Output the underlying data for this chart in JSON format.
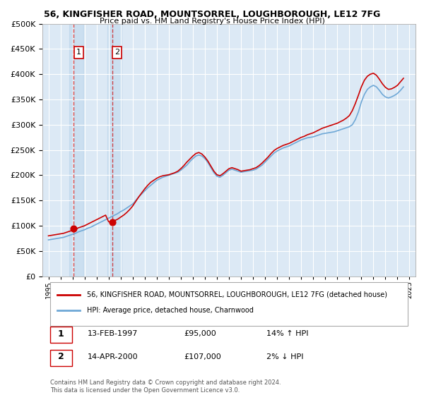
{
  "title1": "56, KINGFISHER ROAD, MOUNTSORREL, LOUGHBOROUGH, LE12 7FG",
  "title2": "Price paid vs. HM Land Registry's House Price Index (HPI)",
  "ylabel_ticks": [
    "£0",
    "£50K",
    "£100K",
    "£150K",
    "£200K",
    "£250K",
    "£300K",
    "£350K",
    "£400K",
    "£450K",
    "£500K"
  ],
  "ytick_values": [
    0,
    50000,
    100000,
    150000,
    200000,
    250000,
    300000,
    350000,
    400000,
    450000,
    500000
  ],
  "xlim": [
    1994.5,
    2025.5
  ],
  "ylim": [
    0,
    500000
  ],
  "hpi_color": "#6fa8d6",
  "price_color": "#cc0000",
  "background_color": "#dce9f5",
  "grid_color": "#ffffff",
  "legend_label_red": "56, KINGFISHER ROAD, MOUNTSORREL, LOUGHBOROUGH, LE12 7FG (detached house)",
  "legend_label_blue": "HPI: Average price, detached house, Charnwood",
  "transaction1_label": "1",
  "transaction1_date": "13-FEB-1997",
  "transaction1_price": "£95,000",
  "transaction1_hpi": "14% ↑ HPI",
  "transaction1_year": 1997.11,
  "transaction1_value": 95000,
  "transaction2_label": "2",
  "transaction2_date": "14-APR-2000",
  "transaction2_price": "£107,000",
  "transaction2_hpi": "2% ↓ HPI",
  "transaction2_year": 2000.29,
  "transaction2_value": 107000,
  "footnote": "Contains HM Land Registry data © Crown copyright and database right 2024.\nThis data is licensed under the Open Government Licence v3.0.",
  "hpi_x": [
    1995,
    1995.25,
    1995.5,
    1995.75,
    1996,
    1996.25,
    1996.5,
    1996.75,
    1997,
    1997.25,
    1997.5,
    1997.75,
    1998,
    1998.25,
    1998.5,
    1998.75,
    1999,
    1999.25,
    1999.5,
    1999.75,
    2000,
    2000.25,
    2000.5,
    2000.75,
    2001,
    2001.25,
    2001.5,
    2001.75,
    2002,
    2002.25,
    2002.5,
    2002.75,
    2003,
    2003.25,
    2003.5,
    2003.75,
    2004,
    2004.25,
    2004.5,
    2004.75,
    2005,
    2005.25,
    2005.5,
    2005.75,
    2006,
    2006.25,
    2006.5,
    2006.75,
    2007,
    2007.25,
    2007.5,
    2007.75,
    2008,
    2008.25,
    2008.5,
    2008.75,
    2009,
    2009.25,
    2009.5,
    2009.75,
    2010,
    2010.25,
    2010.5,
    2010.75,
    2011,
    2011.25,
    2011.5,
    2011.75,
    2012,
    2012.25,
    2012.5,
    2012.75,
    2013,
    2013.25,
    2013.5,
    2013.75,
    2014,
    2014.25,
    2014.5,
    2014.75,
    2015,
    2015.25,
    2015.5,
    2015.75,
    2016,
    2016.25,
    2016.5,
    2016.75,
    2017,
    2017.25,
    2017.5,
    2017.75,
    2018,
    2018.25,
    2018.5,
    2018.75,
    2019,
    2019.25,
    2019.5,
    2019.75,
    2020,
    2020.25,
    2020.5,
    2020.75,
    2021,
    2021.25,
    2021.5,
    2021.75,
    2022,
    2022.25,
    2022.5,
    2022.75,
    2023,
    2023.25,
    2023.5,
    2023.75,
    2024,
    2024.25,
    2024.5
  ],
  "hpi_y": [
    72000,
    73000,
    74000,
    75000,
    76000,
    77000,
    79000,
    81000,
    83000,
    85000,
    88000,
    90000,
    92000,
    95000,
    97000,
    100000,
    103000,
    106000,
    109000,
    112000,
    115000,
    118000,
    121000,
    124000,
    128000,
    131000,
    135000,
    139000,
    143000,
    150000,
    157000,
    163000,
    169000,
    175000,
    180000,
    185000,
    190000,
    193000,
    196000,
    198000,
    200000,
    202000,
    204000,
    206000,
    210000,
    215000,
    220000,
    227000,
    233000,
    238000,
    240000,
    238000,
    233000,
    225000,
    215000,
    205000,
    198000,
    196000,
    200000,
    205000,
    210000,
    212000,
    210000,
    208000,
    206000,
    207000,
    208000,
    209000,
    210000,
    212000,
    216000,
    220000,
    226000,
    232000,
    238000,
    244000,
    248000,
    251000,
    254000,
    256000,
    258000,
    261000,
    264000,
    267000,
    270000,
    272000,
    274000,
    275000,
    276000,
    278000,
    280000,
    282000,
    283000,
    284000,
    285000,
    286000,
    288000,
    290000,
    292000,
    294000,
    296000,
    300000,
    310000,
    325000,
    345000,
    360000,
    370000,
    375000,
    378000,
    375000,
    368000,
    360000,
    355000,
    353000,
    355000,
    358000,
    362000,
    368000,
    375000
  ],
  "price_x_approx": [
    1995,
    1995.25,
    1995.5,
    1995.75,
    1996,
    1996.25,
    1996.5,
    1996.75,
    1997,
    1997.25,
    1997.5,
    1997.75,
    1998,
    1998.25,
    1998.5,
    1998.75,
    1999,
    1999.25,
    1999.5,
    1999.75,
    2000,
    2000.25,
    2000.5,
    2000.75,
    2001,
    2001.25,
    2001.5,
    2001.75,
    2002,
    2002.25,
    2002.5,
    2002.75,
    2003,
    2003.25,
    2003.5,
    2003.75,
    2004,
    2004.25,
    2004.5,
    2004.75,
    2005,
    2005.25,
    2005.5,
    2005.75,
    2006,
    2006.25,
    2006.5,
    2006.75,
    2007,
    2007.25,
    2007.5,
    2007.75,
    2008,
    2008.25,
    2008.5,
    2008.75,
    2009,
    2009.25,
    2009.5,
    2009.75,
    2010,
    2010.25,
    2010.5,
    2010.75,
    2011,
    2011.25,
    2011.5,
    2011.75,
    2012,
    2012.25,
    2012.5,
    2012.75,
    2013,
    2013.25,
    2013.5,
    2013.75,
    2014,
    2014.25,
    2014.5,
    2014.75,
    2015,
    2015.25,
    2015.5,
    2015.75,
    2016,
    2016.25,
    2016.5,
    2016.75,
    2017,
    2017.25,
    2017.5,
    2017.75,
    2018,
    2018.25,
    2018.5,
    2018.75,
    2019,
    2019.25,
    2019.5,
    2019.75,
    2020,
    2020.25,
    2020.5,
    2020.75,
    2021,
    2021.25,
    2021.5,
    2021.75,
    2022,
    2022.25,
    2022.5,
    2022.75,
    2023,
    2023.25,
    2023.5,
    2023.75,
    2024,
    2024.25,
    2024.5
  ],
  "price_y_approx": [
    80000,
    81000,
    82000,
    83000,
    84000,
    85000,
    87000,
    89000,
    91000,
    93000,
    96000,
    98000,
    100000,
    103000,
    106000,
    109000,
    112000,
    115000,
    118000,
    121000,
    108000,
    107000,
    110000,
    113000,
    117000,
    121000,
    126000,
    132000,
    139000,
    148000,
    157000,
    165000,
    173000,
    180000,
    186000,
    190000,
    194000,
    197000,
    199000,
    200000,
    201000,
    203000,
    205000,
    208000,
    213000,
    219000,
    226000,
    232000,
    238000,
    243000,
    245000,
    242000,
    236000,
    228000,
    218000,
    208000,
    201000,
    199000,
    203000,
    208000,
    213000,
    215000,
    213000,
    211000,
    208000,
    209000,
    210000,
    211000,
    213000,
    215000,
    219000,
    224000,
    230000,
    236000,
    243000,
    249000,
    253000,
    256000,
    259000,
    261000,
    263000,
    266000,
    269000,
    272000,
    275000,
    277000,
    280000,
    282000,
    284000,
    287000,
    290000,
    293000,
    295000,
    297000,
    299000,
    301000,
    303000,
    306000,
    309000,
    313000,
    318000,
    328000,
    342000,
    358000,
    375000,
    388000,
    396000,
    400000,
    402000,
    398000,
    390000,
    381000,
    374000,
    370000,
    371000,
    374000,
    378000,
    385000,
    392000
  ],
  "xtick_years": [
    1995,
    1996,
    1997,
    1998,
    1999,
    2000,
    2001,
    2002,
    2003,
    2004,
    2005,
    2006,
    2007,
    2008,
    2009,
    2010,
    2011,
    2012,
    2013,
    2014,
    2015,
    2016,
    2017,
    2018,
    2019,
    2020,
    2021,
    2022,
    2023,
    2024,
    2025
  ]
}
